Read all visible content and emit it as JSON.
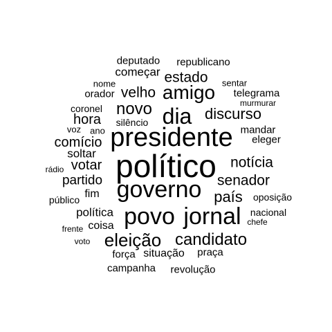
{
  "text_color": "#000000",
  "background_color": "#ffffff",
  "words": [
    "político",
    "presidente",
    "governo",
    "povo",
    "jornal",
    "dia",
    "amigo",
    "eleição",
    "candidato",
    "novo",
    "discurso",
    "país",
    "senador",
    "notícia",
    "velho",
    "estado",
    "comício",
    "hora",
    "votar",
    "partido",
    "começar",
    "deputado",
    "republicano",
    "telegrama",
    "orador",
    "soltar",
    "política",
    "coisa",
    "fim",
    "situação",
    "força",
    "praça",
    "campanha",
    "revolução",
    "coronel",
    "mandar",
    "eleger",
    "silêncio",
    "nome",
    "sentar",
    "murmurar",
    "voz",
    "ano",
    "rádio",
    "público",
    "oposição",
    "nacional",
    "chefe",
    "frente",
    "voto"
  ]
}
